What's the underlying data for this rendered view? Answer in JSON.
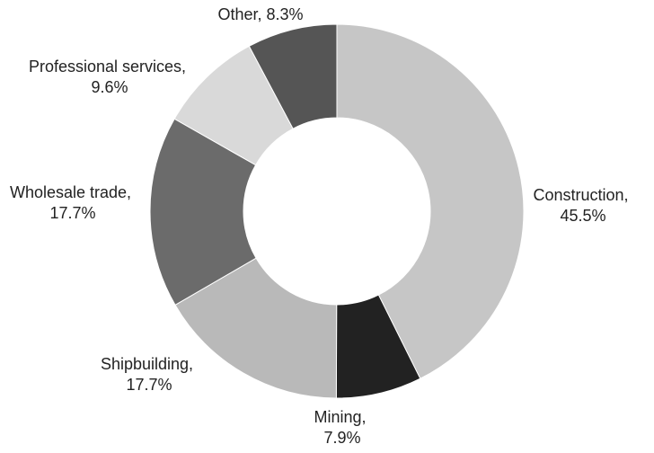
{
  "chart_data": {
    "type": "pie",
    "style": "donut",
    "title": "",
    "categories": [
      "Construction",
      "Mining",
      "Shipbuilding",
      "Wholesale trade",
      "Professional services",
      "Other"
    ],
    "values": [
      45.5,
      7.9,
      17.7,
      17.7,
      9.6,
      8.3
    ],
    "unit": "%",
    "labels": [
      {
        "line1": "Construction,",
        "line2": "45.5%"
      },
      {
        "line1": "Mining,",
        "line2": "7.9%"
      },
      {
        "line1": "Shipbuilding,",
        "line2": "17.7%"
      },
      {
        "line1": "Wholesale trade,",
        "line2": "17.7%"
      },
      {
        "line1": "Professional services,",
        "line2": "9.6%"
      },
      {
        "line1": "Other, 8.3%",
        "line2": ""
      }
    ],
    "colors": [
      "#c6c6c6",
      "#222222",
      "#b9b9b9",
      "#6b6b6b",
      "#d9d9d9",
      "#555555"
    ],
    "legend": "none"
  }
}
